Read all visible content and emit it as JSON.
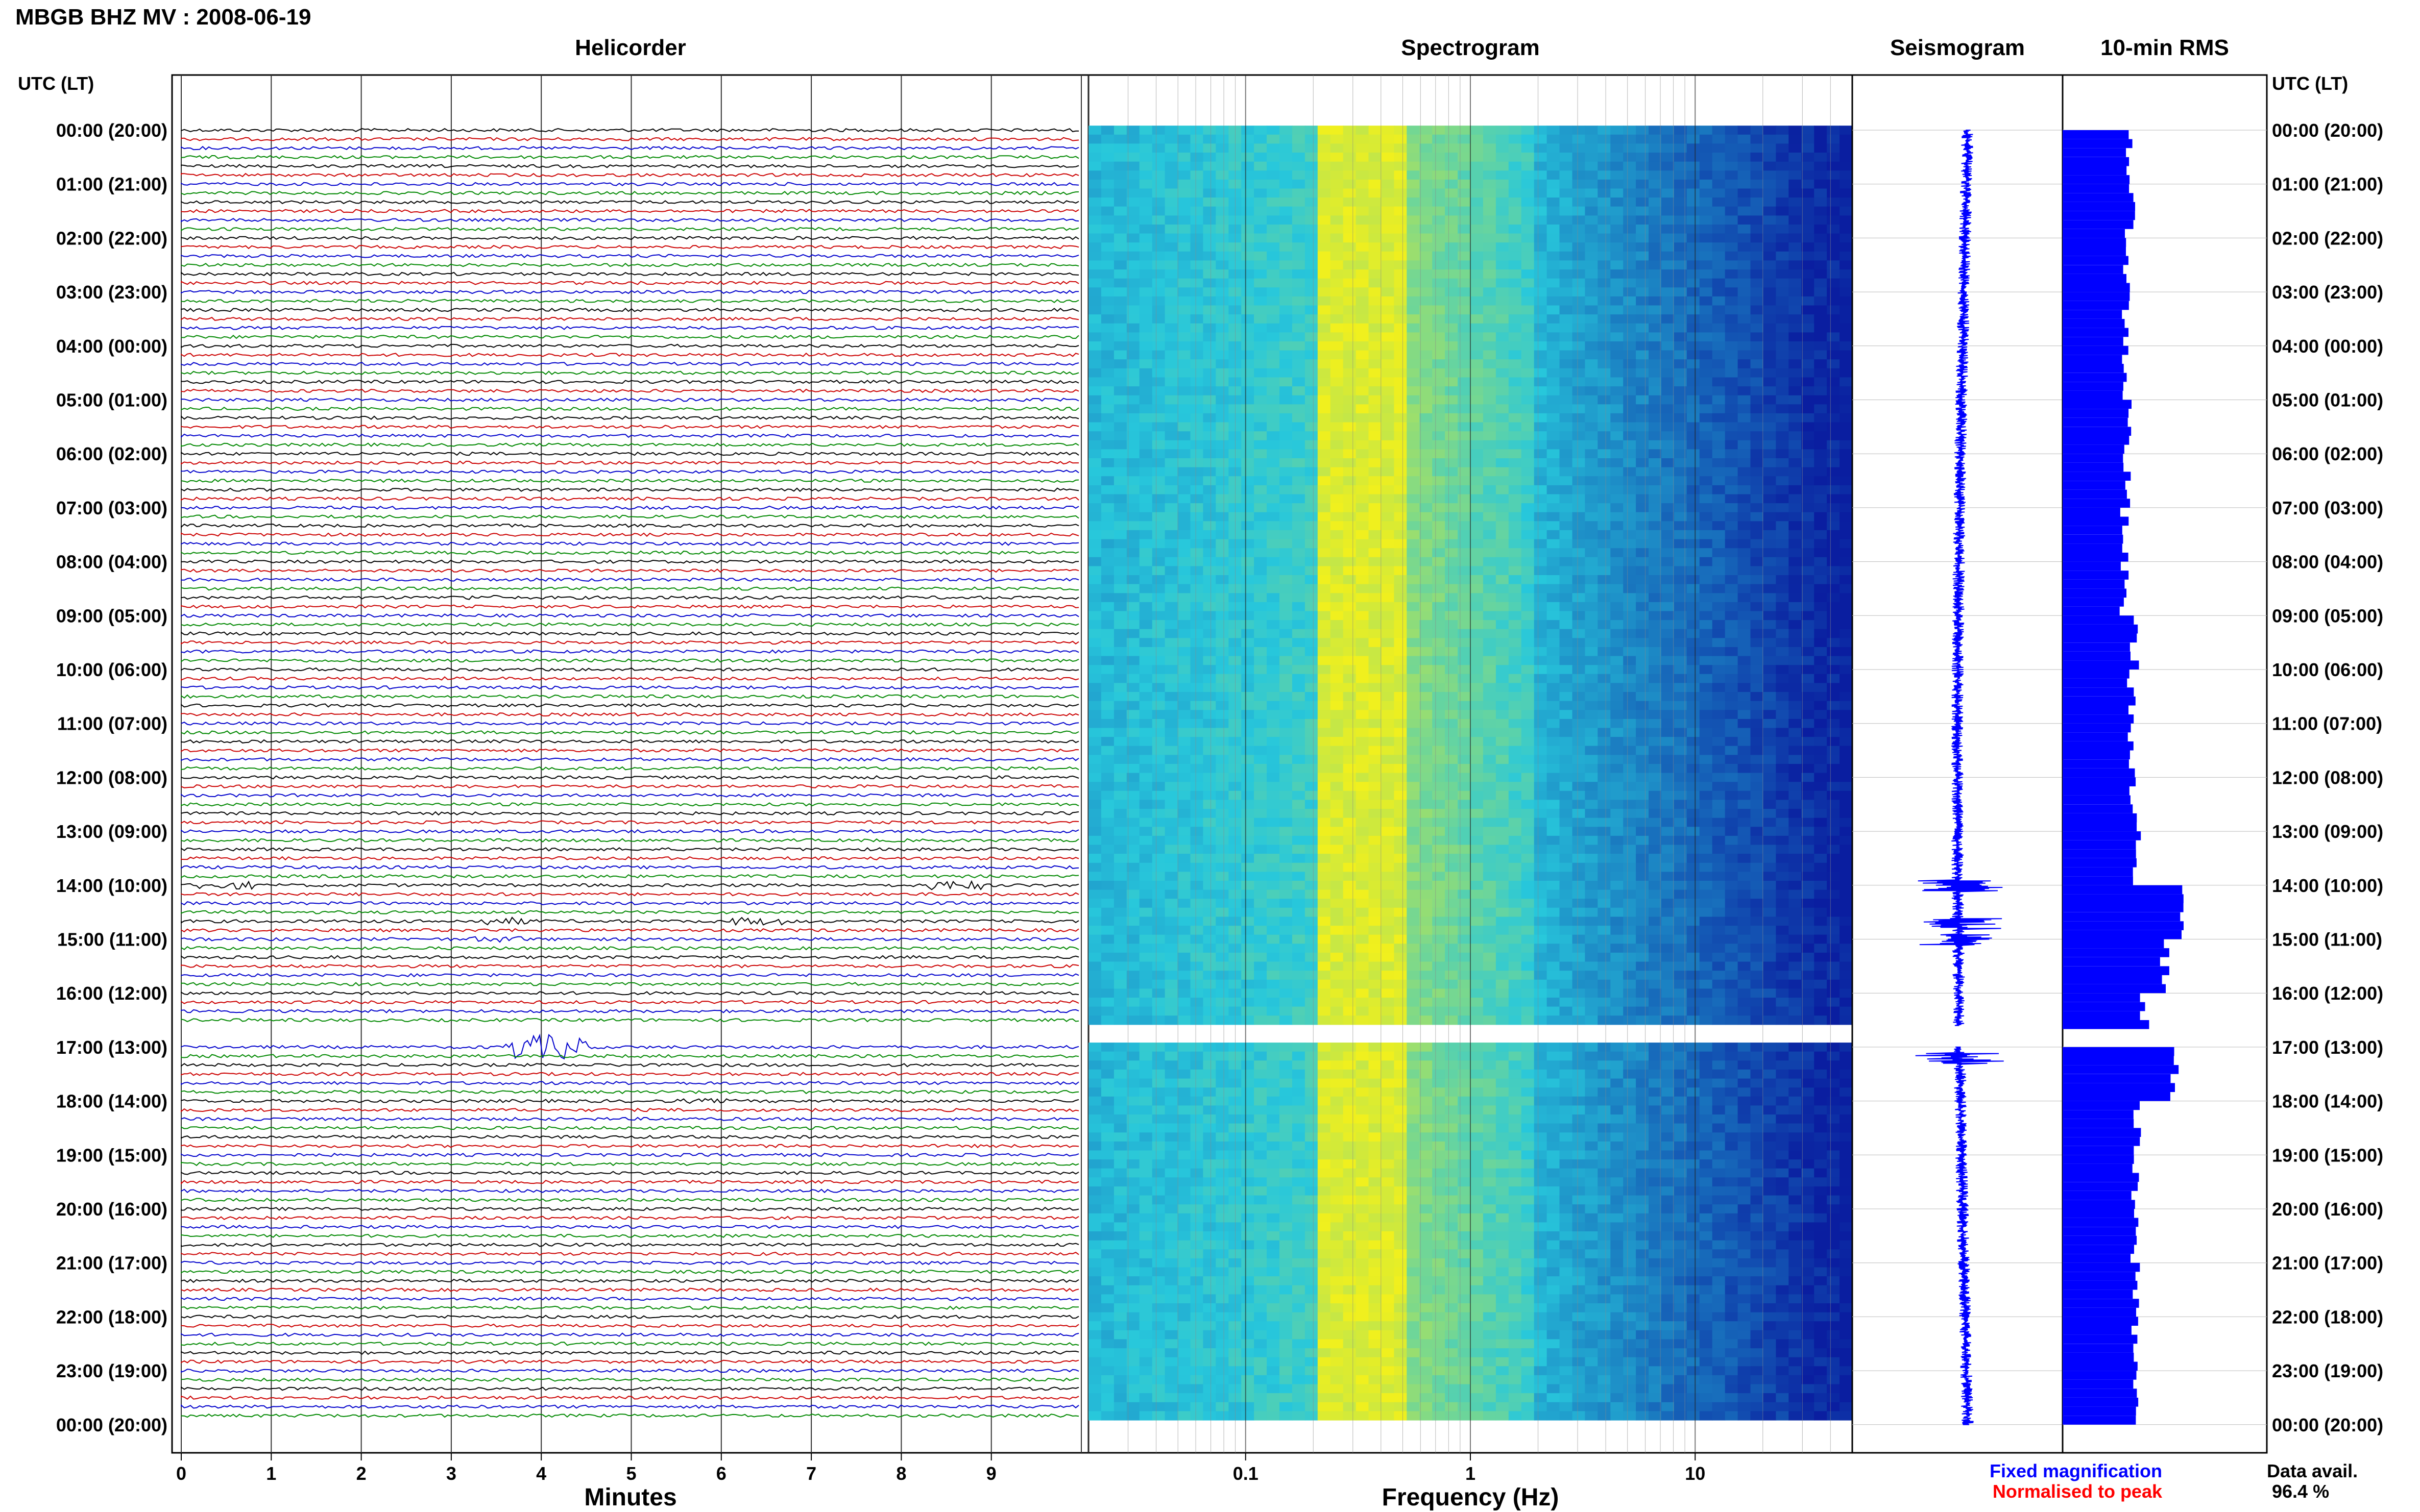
{
  "title": "MBGB BHZ MV : 2008-06-19",
  "panels": {
    "helicorder": "Helicorder",
    "spectrogram": "Spectrogram",
    "seismogram": "Seismogram",
    "rms": "10-min RMS"
  },
  "time_axis_label": "UTC (LT)",
  "time_labels": [
    "00:00 (20:00)",
    "01:00 (21:00)",
    "02:00 (22:00)",
    "03:00 (23:00)",
    "04:00 (00:00)",
    "05:00 (01:00)",
    "06:00 (02:00)",
    "07:00 (03:00)",
    "08:00 (04:00)",
    "09:00 (05:00)",
    "10:00 (06:00)",
    "11:00 (07:00)",
    "12:00 (08:00)",
    "13:00 (09:00)",
    "14:00 (10:00)",
    "15:00 (11:00)",
    "16:00 (12:00)",
    "17:00 (13:00)",
    "18:00 (14:00)",
    "19:00 (15:00)",
    "20:00 (16:00)",
    "21:00 (17:00)",
    "22:00 (18:00)",
    "23:00 (19:00)",
    "00:00 (20:00)"
  ],
  "helicorder_axis": {
    "label": "Minutes",
    "ticks": [
      "0",
      "1",
      "2",
      "3",
      "4",
      "5",
      "6",
      "7",
      "8",
      "9"
    ]
  },
  "spectrogram_axis": {
    "label": "Frequency (Hz)",
    "ticks": [
      "0.1",
      "1",
      "10"
    ],
    "scale": "log",
    "range": [
      0.02,
      50
    ]
  },
  "legend": {
    "fixed": "Fixed magnification",
    "normalised": "Normalised to peak"
  },
  "data_avail": {
    "label": "Data avail.",
    "value": "96.4 %"
  },
  "colors": {
    "trace_cycle": [
      "#000000",
      "#cc0000",
      "#0000cc",
      "#008800"
    ],
    "rms_bar": "#0000ff",
    "spec_low": "#0a1fa0",
    "spec_high": "#f0f020",
    "fixed_text": "#0000ff",
    "normalised_text": "#ff0000"
  },
  "chart_data": [
    {
      "type": "line",
      "name": "helicorder",
      "x_range_minutes": [
        0,
        10
      ],
      "rows_per_hour": 6,
      "gap_hours": [
        16.6,
        17.0
      ],
      "events": [
        {
          "time_h": 8.7,
          "minute": 3.3,
          "amp": 1.5
        },
        {
          "time_h": 14.0,
          "minute": 0.5,
          "amp": 2.5
        },
        {
          "time_h": 14.0,
          "minute": 8.6,
          "amp": 3
        },
        {
          "time_h": 14.6,
          "minute": 3.6,
          "amp": 2.5
        },
        {
          "time_h": 14.6,
          "minute": 6.4,
          "amp": 2.5
        },
        {
          "time_h": 15.0,
          "minute": 3.5,
          "amp": 2
        },
        {
          "time_h": 17.0,
          "minute": 3.9,
          "amp": 8
        },
        {
          "time_h": 17.0,
          "minute": 4.2,
          "amp": 8
        },
        {
          "time_h": 18.0,
          "minute": 5.8,
          "amp": 1.5
        }
      ]
    },
    {
      "type": "heatmap",
      "name": "spectrogram",
      "x_scale": "log",
      "x_range_hz": [
        0.02,
        50
      ],
      "peak_band_hz": [
        0.2,
        0.5
      ],
      "gap_hours": [
        16.6,
        17.0
      ]
    },
    {
      "type": "line",
      "name": "seismogram",
      "gap_hours": [
        16.6,
        17.0
      ],
      "spikes_hours": [
        14.0,
        14.7,
        15.0,
        17.2
      ]
    },
    {
      "type": "bar",
      "name": "10-min RMS",
      "orientation": "horizontal",
      "hourly_rms_relative": [
        0.33,
        0.33,
        0.32,
        0.31,
        0.31,
        0.32,
        0.31,
        0.3,
        0.3,
        0.35,
        0.34,
        0.33,
        0.34,
        0.36,
        0.6,
        0.5,
        0.4,
        0.55,
        0.36,
        0.35,
        0.35,
        0.36,
        0.36,
        0.36
      ],
      "gap_hours": [
        16.6,
        17.0
      ]
    }
  ]
}
